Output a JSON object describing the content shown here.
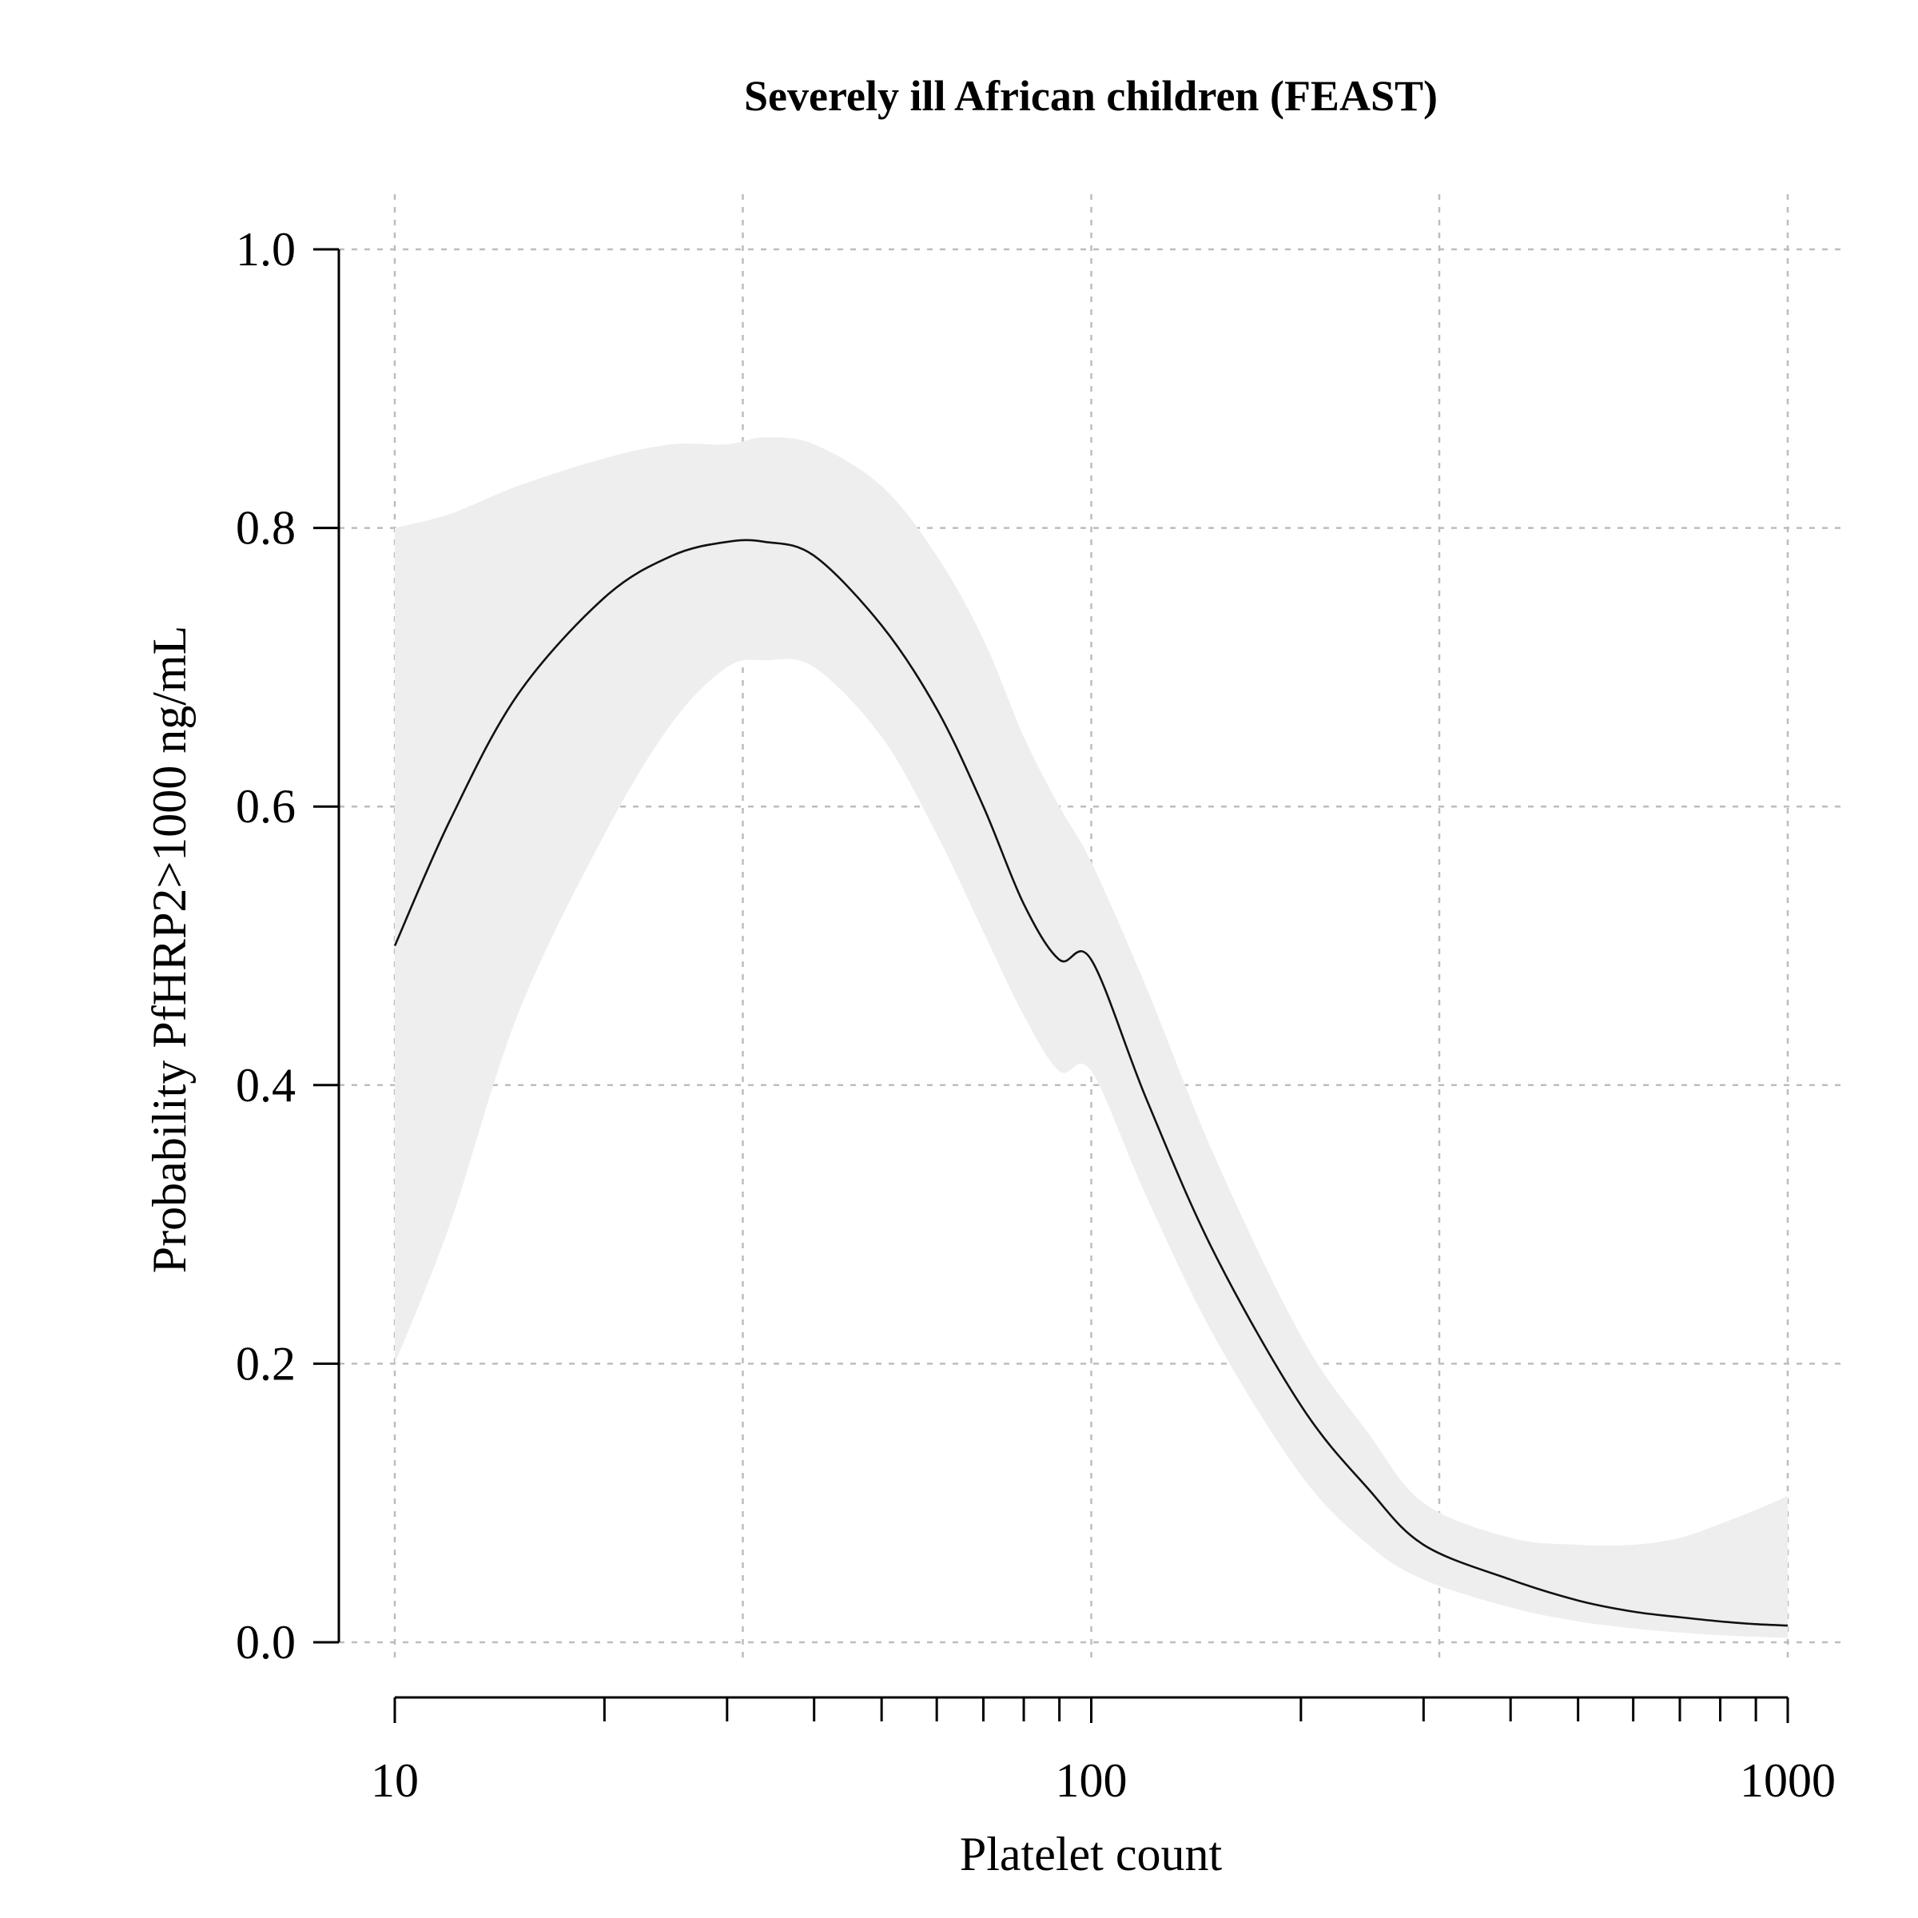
{
  "chart_data": {
    "type": "line",
    "title": "Severely ill African children (FEAST)",
    "xlabel": "Platelet count",
    "ylabel": "Probability PfHRP2>1000 ng/mL",
    "x_scale": "log",
    "xlim": [
      10,
      1000
    ],
    "ylim": [
      0,
      1
    ],
    "x_ticks": [
      10,
      100,
      1000
    ],
    "x_tick_labels": [
      "10",
      "100",
      "1000"
    ],
    "x_minor_ticks": [
      20,
      30,
      40,
      50,
      60,
      70,
      80,
      90,
      200,
      300,
      400,
      500,
      600,
      700,
      800,
      900
    ],
    "y_ticks": [
      0,
      0.2,
      0.4,
      0.6,
      0.8,
      1.0
    ],
    "y_tick_labels": [
      "0.0",
      "0.2",
      "0.4",
      "0.6",
      "0.8",
      "1.0"
    ],
    "x_grid": [
      10,
      31.6,
      100,
      316,
      1000
    ],
    "y_grid": [
      0,
      0.2,
      0.4,
      0.6,
      0.8,
      1.0
    ],
    "grid": true,
    "band_color": "#eeeeee",
    "line_color": "#111111",
    "series": [
      {
        "x": [
          10,
          12,
          15,
          20,
          25,
          30,
          34,
          40,
          50,
          60,
          70,
          80,
          90,
          100,
          120,
          150,
          200,
          250,
          300,
          400,
          500,
          600,
          700,
          800,
          900,
          1000
        ],
        "y": [
          0.5,
          0.59,
          0.68,
          0.75,
          0.78,
          0.79,
          0.79,
          0.78,
          0.73,
          0.67,
          0.6,
          0.53,
          0.49,
          0.49,
          0.39,
          0.28,
          0.17,
          0.11,
          0.07,
          0.045,
          0.03,
          0.022,
          0.018,
          0.015,
          0.013,
          0.012
        ],
        "lower": [
          0.2,
          0.3,
          0.45,
          0.58,
          0.66,
          0.7,
          0.705,
          0.7,
          0.65,
          0.58,
          0.51,
          0.45,
          0.41,
          0.41,
          0.32,
          0.22,
          0.12,
          0.07,
          0.045,
          0.025,
          0.015,
          0.01,
          0.007,
          0.005,
          0.004,
          0.003
        ],
        "upper": [
          0.8,
          0.81,
          0.83,
          0.85,
          0.86,
          0.86,
          0.865,
          0.86,
          0.83,
          0.78,
          0.72,
          0.65,
          0.6,
          0.56,
          0.47,
          0.35,
          0.22,
          0.15,
          0.1,
          0.075,
          0.07,
          0.07,
          0.075,
          0.085,
          0.095,
          0.105
        ]
      }
    ]
  }
}
